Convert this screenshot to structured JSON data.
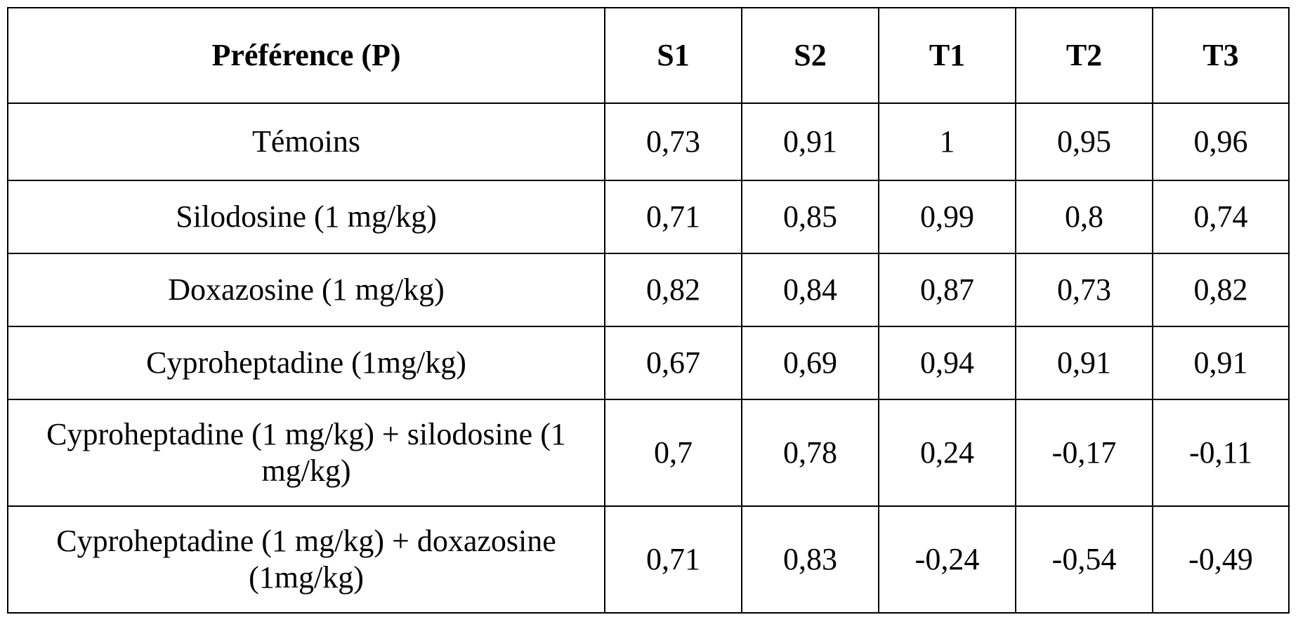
{
  "table": {
    "headers": [
      "Préférence (P)",
      "S1",
      "S2",
      "T1",
      "T2",
      "T3"
    ],
    "rows": [
      {
        "label": "Témoins",
        "values": [
          "0,73",
          "0,91",
          "1",
          "0,95",
          "0,96"
        ]
      },
      {
        "label": "Silodosine (1 mg/kg)",
        "values": [
          "0,71",
          "0,85",
          "0,99",
          "0,8",
          "0,74"
        ]
      },
      {
        "label": "Doxazosine (1 mg/kg)",
        "values": [
          "0,82",
          "0,84",
          "0,87",
          "0,73",
          "0,82"
        ]
      },
      {
        "label": "Cyproheptadine (1mg/kg)",
        "values": [
          "0,67",
          "0,69",
          "0,94",
          "0,91",
          "0,91"
        ]
      },
      {
        "label": "Cyproheptadine (1 mg/kg) + silodosine (1 mg/kg)",
        "values": [
          "0,7",
          "0,78",
          "0,24",
          "-0,17",
          "-0,11"
        ]
      },
      {
        "label": "Cyproheptadine (1 mg/kg) + doxazosine (1mg/kg)",
        "values": [
          "0,71",
          "0,83",
          "-0,24",
          "-0,54",
          "-0,49"
        ]
      }
    ]
  }
}
